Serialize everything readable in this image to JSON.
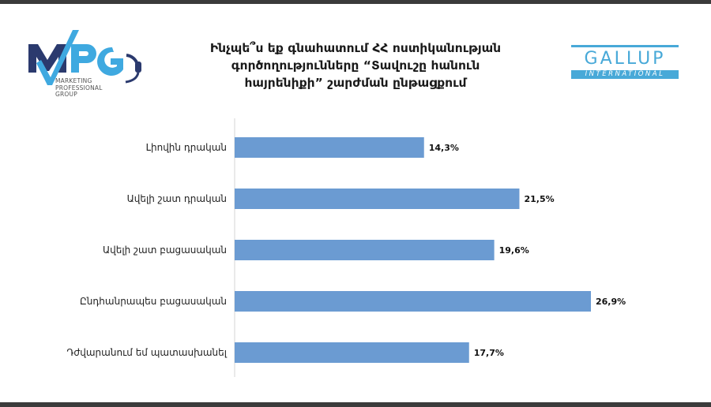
{
  "header": {
    "title_lines": [
      "Ինչպե՞ս եք գնահատում ՀՀ ոստիկանության",
      "գործողությունները “Տավուշը հանուն",
      "հայրենիքի” շարժման ընթացքում"
    ]
  },
  "logos": {
    "mpg": {
      "mark": "MPG",
      "sub_lines": [
        "MARKETING",
        "PROFESSIONAL",
        "GROUP"
      ]
    },
    "gallup": {
      "name": "GALLUP",
      "band": "INTERNATIONAL"
    }
  },
  "colors": {
    "bar": "#6b9bd2",
    "frame": "#3b3b3b",
    "gallup_blue": "#48a9d8",
    "mpg_navy": "#2b3a6e",
    "mpg_blue": "#3fa9e0"
  },
  "chart_data": {
    "type": "bar",
    "orientation": "horizontal",
    "categories": [
      "Լիովին դրական",
      "Ավելի շատ դրական",
      "Ավելի շատ բացասական",
      "Ընդհանրապես բացասական",
      "Դժվարանում եմ պատասխանել"
    ],
    "values": [
      14.3,
      21.5,
      19.6,
      26.9,
      17.7
    ],
    "value_labels": [
      "14,3%",
      "21,5%",
      "19,6%",
      "26,9%",
      "17,7%"
    ],
    "xlim": [
      0,
      30
    ],
    "grid": false,
    "legend": "none"
  }
}
